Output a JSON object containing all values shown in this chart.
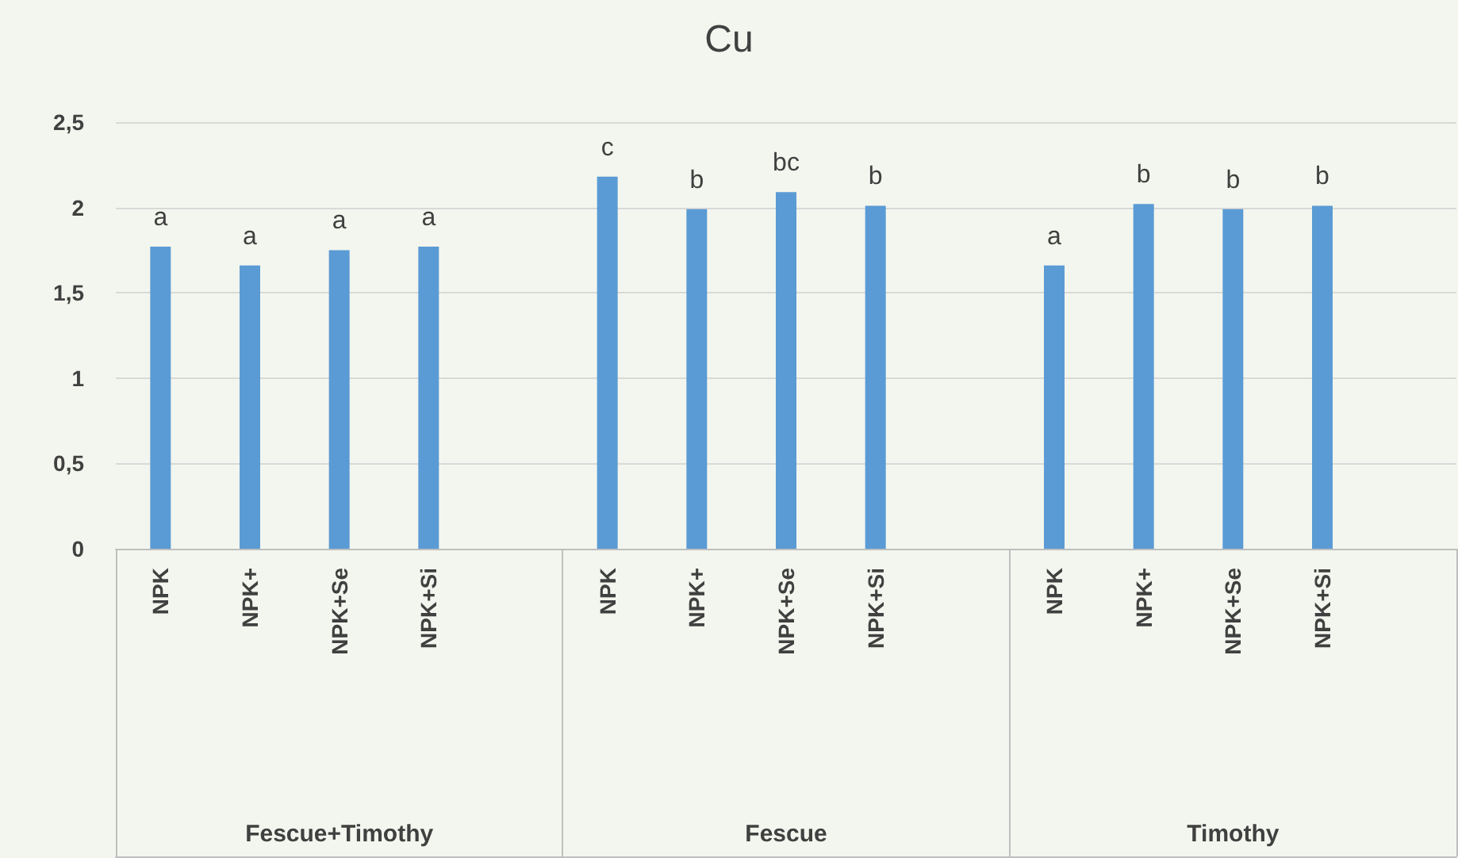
{
  "chart_data": {
    "type": "bar",
    "title": "Cu",
    "categories": [
      "NPK",
      "NPK+",
      "NPK+Se",
      "NPK+Si",
      null,
      "NPK",
      "NPK+",
      "NPK+Se",
      "NPK+Si",
      null,
      "NPK",
      "NPK+",
      "NPK+Se",
      "NPK+Si",
      null
    ],
    "values": [
      1.77,
      1.66,
      1.75,
      1.77,
      null,
      2.18,
      1.99,
      2.09,
      2.01,
      null,
      1.66,
      2.02,
      1.99,
      2.01,
      null
    ],
    "value_labels": [
      "a",
      "a",
      "a",
      "a",
      null,
      "c",
      "b",
      "bc",
      "b",
      null,
      "a",
      "b",
      "b",
      "b",
      null
    ],
    "color": "#5b9bd5",
    "annotations": [
      "Fescue+Timothy",
      "Fescue",
      "Timothy"
    ],
    "ylim": [
      0,
      2.5
    ],
    "yticks": [
      0,
      {
        "value": 0.5,
        "label": "0,5"
      },
      1,
      {
        "value": 1.5,
        "label": "1,5"
      },
      2,
      {
        "value": 2.5,
        "label": "2,5"
      }
    ],
    "grid": "y"
  }
}
